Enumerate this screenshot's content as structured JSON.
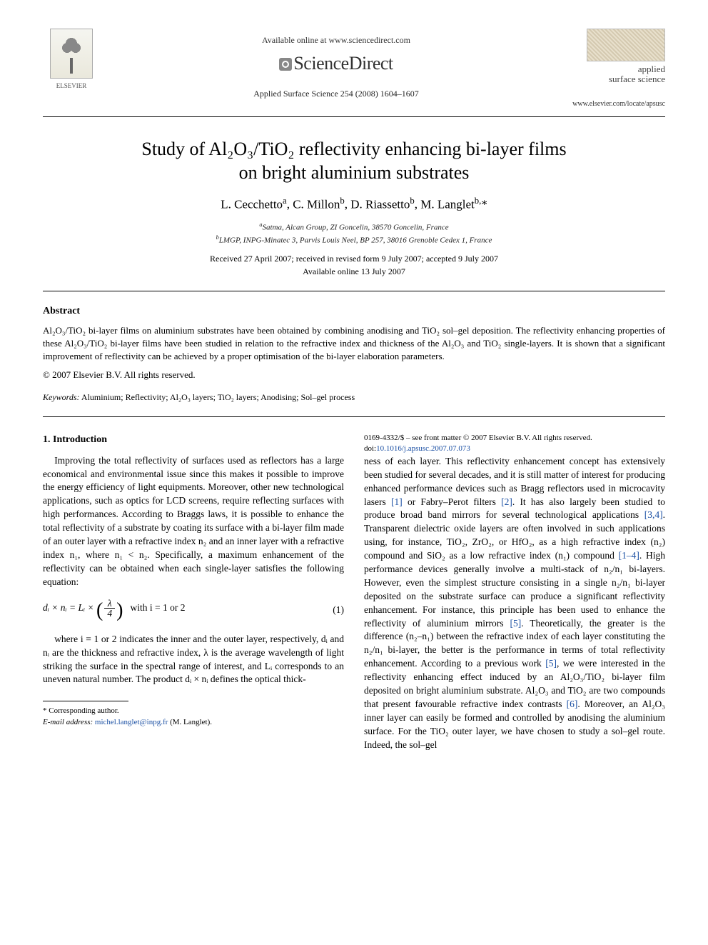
{
  "header": {
    "available_text": "Available online at www.sciencedirect.com",
    "sciencedirect": "ScienceDirect",
    "journal_ref": "Applied Surface Science 254 (2008) 1604–1607",
    "publisher_name": "ELSEVIER",
    "cover_title_line1": "applied",
    "cover_title_line2": "surface science",
    "journal_url": "www.elsevier.com/locate/apsusc"
  },
  "title_line1": "Study of Al₂O₃/TiO₂ reflectivity enhancing bi-layer films",
  "title_line2": "on bright aluminium substrates",
  "authors_html": "L. Cecchetto <sup>a</sup>, C. Millon <sup>b</sup>, D. Riassetto <sup>b</sup>, M. Langlet <sup>b,</sup>*",
  "affiliations": {
    "a": "Satma, Alcan Group, ZI Goncelin, 38570 Goncelin, France",
    "b": "LMGP, INPG-Minatec 3, Parvis Louis Neel, BP 257, 38016 Grenoble Cedex 1, France"
  },
  "dates": {
    "received": "Received 27 April 2007; received in revised form 9 July 2007; accepted 9 July 2007",
    "online": "Available online 13 July 2007"
  },
  "abstract": {
    "heading": "Abstract",
    "body": "Al₂O₃/TiO₂ bi-layer films on aluminium substrates have been obtained by combining anodising and TiO₂ sol–gel deposition. The reflectivity enhancing properties of these Al₂O₃/TiO₂ bi-layer films have been studied in relation to the refractive index and thickness of the Al₂O₃ and TiO₂ single-layers. It is shown that a significant improvement of reflectivity can be achieved by a proper optimisation of the bi-layer elaboration parameters.",
    "copyright": "© 2007 Elsevier B.V. All rights reserved."
  },
  "keywords": {
    "label": "Keywords:",
    "list": "Aluminium; Reflectivity; Al₂O₃ layers; TiO₂ layers; Anodising; Sol–gel process"
  },
  "section1": {
    "heading": "1. Introduction",
    "p1": "Improving the total reflectivity of surfaces used as reflectors has a large economical and environmental issue since this makes it possible to improve the energy efficiency of light equipments. Moreover, other new technological applications, such as optics for LCD screens, require reflecting surfaces with high performances. According to Braggs laws, it is possible to enhance the total reflectivity of a substrate by coating its surface with a bi-layer film made of an outer layer with a refractive index n₂ and an inner layer with a refractive index n₁, where n₁ < n₂. Specifically, a maximum enhancement of the reflectivity can be obtained when each single-layer satisfies the following equation:",
    "eq_left": "dᵢ × nᵢ = Lᵢ ×",
    "eq_frac_num": "λ",
    "eq_frac_den": "4",
    "eq_cond": "with i = 1 or 2",
    "eq_num": "(1)",
    "p2": "where i = 1 or 2 indicates the inner and the outer layer, respectively, dᵢ and nᵢ are the thickness and refractive index, λ is the average wavelength of light striking the surface in the spectral range of interest, and Lᵢ corresponds to an uneven natural number. The product dᵢ × nᵢ defines the optical thick-",
    "p3a": "ness of each layer. This reflectivity enhancement concept has extensively been studied for several decades, and it is still matter of interest for producing enhanced performance devices such as Bragg reflectors used in microcavity lasers ",
    "ref1": "[1]",
    "p3b": " or Fabry–Perot filters ",
    "ref2": "[2]",
    "p3c": ". It has also largely been studied to produce broad band mirrors for several technological applications ",
    "ref34": "[3,4]",
    "p3d": ". Transparent dielectric oxide layers are often involved in such applications using, for instance, TiO₂, ZrO₂, or HfO₂, as a high refractive index (n₂) compound and SiO₂ as a low refractive index (n₁) compound ",
    "ref14": "[1–4]",
    "p3e": ". High performance devices generally involve a multi-stack of n₂/n₁ bi-layers. However, even the simplest structure consisting in a single n₂/n₁ bi-layer deposited on the substrate surface can produce a significant reflectivity enhancement. For instance, this principle has been used to enhance the reflectivity of aluminium mirrors ",
    "ref5a": "[5]",
    "p3f": ". Theoretically, the greater is the difference (n₂–n₁) between the refractive index of each layer constituting the n₂/n₁ bi-layer, the better is the performance in terms of total reflectivity enhancement. According to a previous work ",
    "ref5b": "[5]",
    "p3g": ", we were interested in the reflectivity enhancing effect induced by an Al₂O₃/TiO₂ bi-layer film deposited on bright aluminium substrate. Al₂O₃ and TiO₂ are two compounds that present favourable refractive index contrasts ",
    "ref6": "[6]",
    "p3h": ". Moreover, an Al₂O₃ inner layer can easily be formed and controlled by anodising the aluminium surface. For the TiO₂ outer layer, we have chosen to study a sol–gel route. Indeed, the sol–gel"
  },
  "footnotes": {
    "corr": "* Corresponding author.",
    "email_label": "E-mail address:",
    "email": "michel.langlet@inpg.fr",
    "email_name": "(M. Langlet)."
  },
  "footer": {
    "line1": "0169-4332/$ – see front matter © 2007 Elsevier B.V. All rights reserved.",
    "doi_label": "doi:",
    "doi": "10.1016/j.apsusc.2007.07.073"
  },
  "colors": {
    "link": "#1a4fa3",
    "text": "#000000",
    "bg": "#ffffff"
  }
}
